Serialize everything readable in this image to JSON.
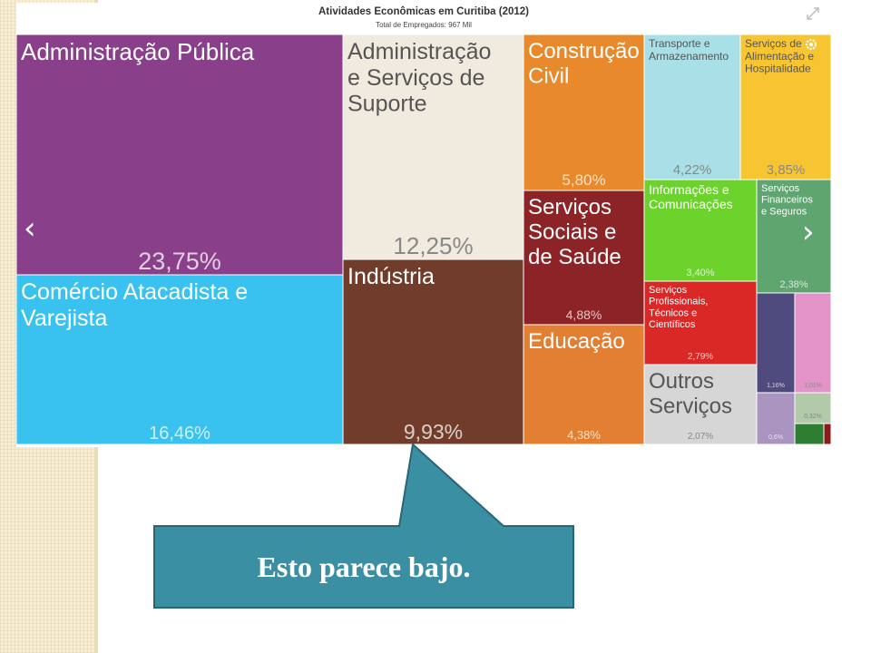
{
  "chart_data": {
    "type": "treemap",
    "title": "Atividades Econômicas em Curitiba (2012)",
    "subtitle": "Total de Empregados: 967 Mil",
    "items": [
      {
        "label": "Administração Pública",
        "percent_label": "23,75%",
        "value": 23.75,
        "color": "#8a3f8a"
      },
      {
        "label": "Comércio Atacadista e Varejista",
        "percent_label": "16,46%",
        "value": 16.46,
        "color": "#39c2ef"
      },
      {
        "label": "Administração e Serviços de Suporte",
        "percent_label": "12,25%",
        "value": 12.25,
        "color": "#f1eadf"
      },
      {
        "label": "Indústria",
        "percent_label": "9,93%",
        "value": 9.93,
        "color": "#713d2a"
      },
      {
        "label": "Construção Civil",
        "percent_label": "5,80%",
        "value": 5.8,
        "color": "#e8892c"
      },
      {
        "label": "Serviços Sociais e de Saúde",
        "percent_label": "4,88%",
        "value": 4.88,
        "color": "#8c2427"
      },
      {
        "label": "Educação",
        "percent_label": "4,38%",
        "value": 4.38,
        "color": "#e37f32"
      },
      {
        "label": "Transporte e Armazenamento",
        "percent_label": "4,22%",
        "value": 4.22,
        "color": "#a9dfe6"
      },
      {
        "label": "Serviços de Alimentação e Hospitalidade",
        "percent_label": "3,85%",
        "value": 3.85,
        "color": "#f7c531"
      },
      {
        "label": "Informações e Comunicações",
        "percent_label": "3,40%",
        "value": 3.4,
        "color": "#6cd32c"
      },
      {
        "label": "Serviços Financeiros e Seguros",
        "percent_label": "2,38%",
        "value": 2.38,
        "color": "#5fa56f"
      },
      {
        "label": "Serviços Profissionais, Técnicos e Científicos",
        "percent_label": "2,79%",
        "value": 2.79,
        "color": "#da2827"
      },
      {
        "label": "Outros Serviços",
        "percent_label": "2,07%",
        "value": 2.07,
        "color": "#d6d6d6"
      },
      {
        "label": "",
        "percent_label": "1,16%",
        "value": 1.16,
        "color": "#4f4b7f"
      },
      {
        "label": "",
        "percent_label": "1,01%",
        "value": 1.01,
        "color": "#e493c8"
      },
      {
        "label": "",
        "percent_label": "0,6%",
        "value": 0.6,
        "color": "#aa94c0"
      },
      {
        "label": "",
        "percent_label": "0,32%",
        "value": 0.32,
        "color": "#b2c9aa"
      },
      {
        "label": "",
        "percent_label": "",
        "value": 0.2,
        "color": "#2e7d32"
      },
      {
        "label": "",
        "percent_label": "",
        "value": 0.1,
        "color": "#8b1a1a"
      }
    ]
  },
  "nav": {
    "prev": "‹",
    "next": "›"
  },
  "callout": {
    "text": "Esto parece bajo.",
    "color": "#3a8fa3",
    "border": "#2a6575"
  }
}
